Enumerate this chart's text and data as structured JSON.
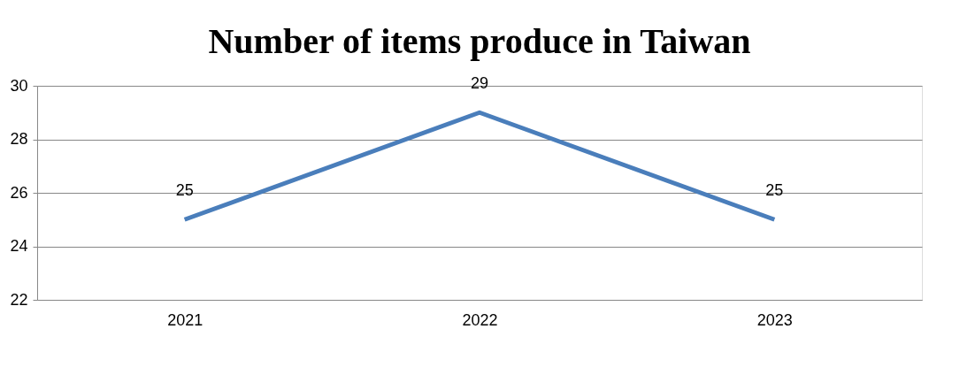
{
  "chart_data": {
    "type": "line",
    "title": "Number of items produce in Taiwan",
    "categories": [
      "2021",
      "2022",
      "2023"
    ],
    "series": [
      {
        "color": "#4a7ebb",
        "values": [
          25,
          29,
          25
        ]
      }
    ],
    "ylim": [
      22,
      30
    ],
    "yticks": [
      22,
      24,
      26,
      28,
      30
    ],
    "grid": "y",
    "data_labels": true,
    "marker": "none",
    "line_style": "solid"
  }
}
